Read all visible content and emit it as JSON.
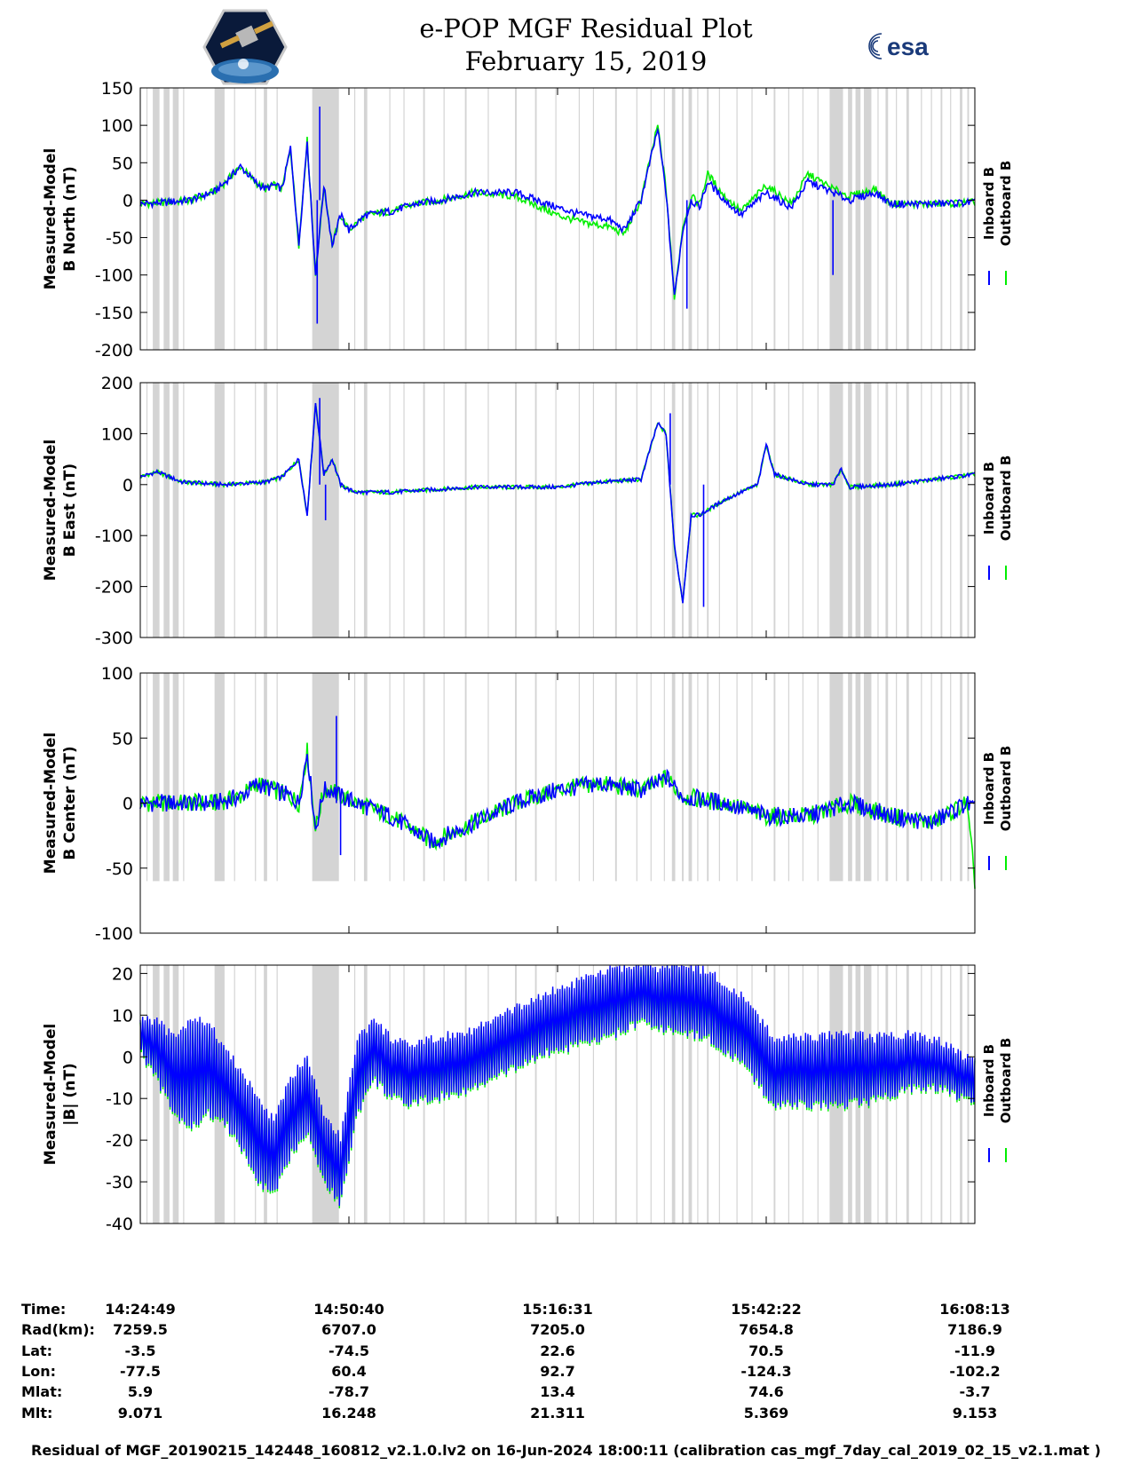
{
  "header": {
    "title_line1": "e-POP MGF Residual Plot",
    "title_line2": "February 15, 2019",
    "logo_left": "cassiope-mission-logo",
    "logo_right_text": "esa"
  },
  "colors": {
    "inboard": "#0000ff",
    "outboard": "#00ee00",
    "shade": "#d4d4d4",
    "axis": "#000000"
  },
  "legend": {
    "inboard": "Inboard B",
    "outboard": "Outboard B"
  },
  "chart_data": [
    {
      "type": "line",
      "ylabel_line1": "Measured-Model",
      "ylabel_line2": "B North (nT)",
      "ylim": [
        -200,
        150
      ],
      "yticks": [
        150,
        100,
        50,
        0,
        -50,
        -100,
        -150,
        -200
      ],
      "x": [
        0,
        3,
        6,
        9,
        10,
        12,
        14,
        15,
        16,
        17,
        18,
        19,
        20,
        21,
        22,
        23,
        24,
        25,
        27,
        30,
        33,
        36,
        40,
        45,
        50,
        53,
        56,
        58,
        60,
        62,
        63,
        64,
        65,
        66,
        67,
        68,
        70,
        72,
        75,
        78,
        80,
        83,
        85,
        88,
        90,
        95,
        100
      ],
      "series": [
        {
          "name": "Inboard B",
          "values": [
            -5,
            -3,
            0,
            12,
            22,
            45,
            22,
            15,
            20,
            15,
            70,
            -60,
            80,
            -100,
            20,
            -60,
            -20,
            -40,
            -20,
            -15,
            -5,
            0,
            10,
            10,
            -10,
            -20,
            -25,
            -40,
            0,
            95,
            10,
            -130,
            -40,
            0,
            -10,
            25,
            0,
            -20,
            10,
            -10,
            25,
            10,
            0,
            10,
            -5,
            -5,
            -3
          ]
        },
        {
          "name": "Outboard B",
          "values": [
            -5,
            -3,
            0,
            12,
            22,
            45,
            22,
            15,
            20,
            15,
            70,
            -60,
            80,
            -100,
            20,
            -60,
            -20,
            -40,
            -20,
            -15,
            -5,
            0,
            10,
            5,
            -20,
            -30,
            -35,
            -45,
            0,
            100,
            15,
            -130,
            -35,
            5,
            -5,
            35,
            5,
            -15,
            20,
            -5,
            35,
            15,
            5,
            15,
            -5,
            -5,
            -3
          ]
        }
      ],
      "extremes": [
        {
          "x": 21.5,
          "y": 125
        },
        {
          "x": 21.2,
          "y": -165
        },
        {
          "x": 65.5,
          "y": -145
        },
        {
          "x": 83,
          "y": -100
        }
      ]
    },
    {
      "type": "line",
      "ylabel_line1": "Measured-Model",
      "ylabel_line2": "B East (nT)",
      "ylim": [
        -300,
        200
      ],
      "yticks": [
        200,
        100,
        0,
        -100,
        -200,
        -300
      ],
      "x": [
        0,
        2,
        5,
        10,
        15,
        17,
        19,
        20,
        21,
        22,
        23,
        24,
        25,
        26,
        30,
        40,
        50,
        55,
        60,
        62,
        63,
        64,
        65,
        66,
        67,
        70,
        74,
        75,
        76,
        80,
        83,
        84,
        85,
        90,
        95,
        100
      ],
      "series": [
        {
          "name": "Inboard B",
          "values": [
            15,
            25,
            5,
            0,
            5,
            15,
            50,
            -60,
            160,
            20,
            50,
            0,
            -10,
            -15,
            -15,
            -5,
            -5,
            5,
            10,
            120,
            100,
            -120,
            -230,
            -60,
            -60,
            -30,
            0,
            80,
            20,
            0,
            0,
            30,
            -5,
            0,
            10,
            20
          ]
        },
        {
          "name": "Outboard B",
          "values": [
            15,
            25,
            5,
            0,
            5,
            15,
            50,
            -60,
            160,
            20,
            50,
            0,
            -10,
            -15,
            -15,
            -5,
            -5,
            5,
            10,
            120,
            100,
            -120,
            -230,
            -60,
            -60,
            -30,
            0,
            80,
            20,
            0,
            0,
            30,
            -5,
            0,
            10,
            20
          ]
        }
      ],
      "extremes": [
        {
          "x": 21.5,
          "y": 170
        },
        {
          "x": 63.5,
          "y": 140
        },
        {
          "x": 67.5,
          "y": -240
        },
        {
          "x": 22.2,
          "y": -70
        }
      ]
    },
    {
      "type": "line",
      "ylabel_line1": "Measured-Model",
      "ylabel_line2": "B Center (nT)",
      "ylim": [
        -100,
        100
      ],
      "yticks": [
        100,
        50,
        0,
        -50,
        -100
      ],
      "x": [
        0,
        5,
        9,
        12,
        14,
        16,
        18,
        19,
        20,
        21,
        22,
        23,
        24,
        26,
        30,
        35,
        40,
        45,
        50,
        55,
        60,
        62,
        63,
        65,
        70,
        75,
        80,
        85,
        90,
        95,
        99,
        100
      ],
      "series": [
        {
          "name": "Inboard B",
          "values": [
            0,
            0,
            0,
            5,
            15,
            10,
            5,
            0,
            40,
            -20,
            10,
            10,
            5,
            0,
            -10,
            -30,
            -15,
            0,
            10,
            15,
            10,
            15,
            20,
            5,
            0,
            -10,
            -10,
            0,
            -10,
            -15,
            0,
            -5
          ]
        },
        {
          "name": "Outboard B",
          "values": [
            0,
            0,
            0,
            5,
            15,
            10,
            5,
            0,
            40,
            -20,
            10,
            10,
            5,
            0,
            -10,
            -30,
            -15,
            0,
            10,
            15,
            10,
            15,
            20,
            5,
            0,
            -10,
            -10,
            0,
            -10,
            -15,
            0,
            -60
          ]
        }
      ],
      "extremes": [
        {
          "x": 23.5,
          "y": 67
        },
        {
          "x": 24,
          "y": -40
        }
      ]
    },
    {
      "type": "line",
      "ylabel_line1": "Measured-Model",
      "ylabel_line2": "|B| (nT)",
      "ylim": [
        -40,
        22
      ],
      "yticks": [
        20,
        10,
        0,
        -10,
        -20,
        -30,
        -40
      ],
      "x": [
        0,
        2,
        4,
        6,
        8,
        10,
        12,
        14,
        16,
        18,
        20,
        22,
        24,
        26,
        28,
        30,
        32,
        36,
        40,
        44,
        48,
        52,
        56,
        58,
        60,
        62,
        64,
        68,
        72,
        76,
        80,
        84,
        88,
        92,
        96,
        100
      ],
      "series": [
        {
          "name": "Inboard B",
          "values": [
            5,
            -2,
            -6,
            -6,
            -4,
            -8,
            -14,
            -20,
            -25,
            -14,
            -10,
            -22,
            -28,
            -8,
            0,
            -5,
            -8,
            -6,
            -3,
            2,
            6,
            9,
            12,
            14,
            14,
            14,
            14,
            12,
            6,
            -4,
            -4,
            -3,
            -4,
            -2,
            -3,
            -8
          ]
        },
        {
          "name": "Outboard B",
          "values": [
            8,
            0,
            -6,
            -6,
            -4,
            -8,
            -14,
            -20,
            -25,
            -14,
            -10,
            -22,
            -28,
            -8,
            0,
            -5,
            -8,
            -6,
            -3,
            2,
            6,
            9,
            12,
            14,
            14,
            14,
            14,
            12,
            6,
            -4,
            -6,
            -6,
            -6,
            -4,
            -3,
            -8
          ]
        }
      ],
      "band": {
        "high": [
          9,
          8,
          4,
          8,
          8,
          2,
          -4,
          -10,
          -16,
          -6,
          0,
          -14,
          -20,
          4,
          8,
          4,
          2,
          4,
          6,
          10,
          14,
          17,
          20,
          21,
          22,
          20,
          22,
          20,
          14,
          4,
          4,
          5,
          4,
          5,
          3,
          -2
        ],
        "low": [
          1,
          -6,
          -14,
          -18,
          -14,
          -16,
          -22,
          -30,
          -34,
          -24,
          -18,
          -30,
          -36,
          -14,
          -6,
          -10,
          -12,
          -10,
          -8,
          -4,
          0,
          2,
          4,
          6,
          8,
          6,
          6,
          4,
          -2,
          -12,
          -12,
          -12,
          -11,
          -8,
          -8,
          -12
        ]
      }
    }
  ],
  "x_axis": {
    "tick_positions": [
      0,
      25,
      50,
      75,
      100
    ]
  },
  "ephemeris": {
    "labels": [
      "Time:",
      "Rad(km):",
      "Lat:",
      "Lon:",
      "Mlat:",
      "Mlt:"
    ],
    "columns": [
      [
        "14:24:49",
        "7259.5",
        "-3.5",
        "-77.5",
        "5.9",
        "9.071"
      ],
      [
        "14:50:40",
        "6707.0",
        "-74.5",
        "60.4",
        "-78.7",
        "16.248"
      ],
      [
        "15:16:31",
        "7205.0",
        "22.6",
        "92.7",
        "13.4",
        "21.311"
      ],
      [
        "15:42:22",
        "7654.8",
        "70.5",
        "-124.3",
        "74.6",
        "5.369"
      ],
      [
        "16:08:13",
        "7186.9",
        "-11.9",
        "-102.2",
        "-3.7",
        "9.153"
      ]
    ]
  },
  "footer": "Residual of MGF_20190215_142448_160812_v2.1.0.lv2 on 16-Jun-2024 18:00:11 (calibration cas_mgf_7day_cal_2019_02_15_v2.1.mat )"
}
